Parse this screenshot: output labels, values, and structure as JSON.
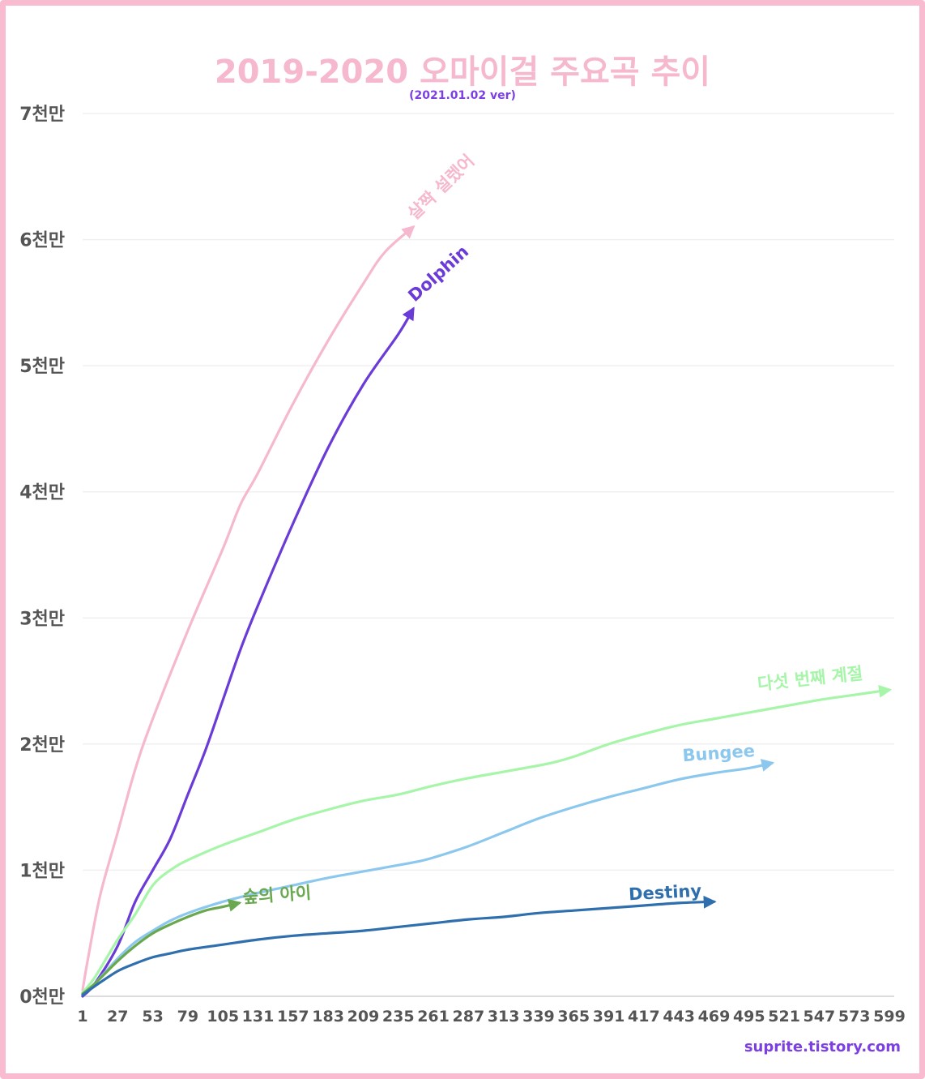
{
  "title": "2019-2020 오마이걸 주요곡 추이",
  "subtitle": "(2021.01.02 ver)",
  "credit": "suprite.tistory.com",
  "chart_data": {
    "type": "line",
    "title": "2019-2020 오마이걸 주요곡 추이",
    "subtitle": "(2021.01.02 ver)",
    "xlabel": "",
    "ylabel": "",
    "x_ticks": [
      "1",
      "27",
      "53",
      "79",
      "105",
      "131",
      "157",
      "183",
      "209",
      "235",
      "261",
      "287",
      "313",
      "339",
      "365",
      "391",
      "417",
      "443",
      "469",
      "495",
      "521",
      "547",
      "573",
      "599"
    ],
    "y_ticks": [
      "0천만",
      "1천만",
      "2천만",
      "3천만",
      "4천만",
      "5천만",
      "6천만",
      "7천만"
    ],
    "xlim": [
      1,
      599
    ],
    "ylim": [
      0,
      7
    ],
    "y_unit": "천만",
    "grid": true,
    "legend": "labels at line ends",
    "series": [
      {
        "name": "살짝 설렜어",
        "color": "#f6b8ce",
        "points": [
          [
            1,
            0.05
          ],
          [
            5,
            0.3
          ],
          [
            14,
            0.8
          ],
          [
            27,
            1.3
          ],
          [
            40,
            1.8
          ],
          [
            53,
            2.2
          ],
          [
            79,
            2.9
          ],
          [
            105,
            3.55
          ],
          [
            118,
            3.9
          ],
          [
            131,
            4.15
          ],
          [
            157,
            4.7
          ],
          [
            183,
            5.2
          ],
          [
            209,
            5.65
          ],
          [
            225,
            5.9
          ],
          [
            246,
            6.1
          ]
        ]
      },
      {
        "name": "Dolphin",
        "color": "#6a3bd6",
        "points": [
          [
            1,
            0
          ],
          [
            10,
            0.1
          ],
          [
            27,
            0.4
          ],
          [
            40,
            0.75
          ],
          [
            53,
            1.0
          ],
          [
            66,
            1.25
          ],
          [
            79,
            1.6
          ],
          [
            92,
            1.95
          ],
          [
            105,
            2.35
          ],
          [
            118,
            2.75
          ],
          [
            131,
            3.1
          ],
          [
            157,
            3.75
          ],
          [
            183,
            4.35
          ],
          [
            209,
            4.85
          ],
          [
            235,
            5.25
          ],
          [
            246,
            5.45
          ]
        ]
      },
      {
        "name": "다섯 번째 계절",
        "color": "#a6f5a9",
        "points": [
          [
            1,
            0.03
          ],
          [
            10,
            0.15
          ],
          [
            27,
            0.45
          ],
          [
            40,
            0.65
          ],
          [
            53,
            0.88
          ],
          [
            66,
            1.0
          ],
          [
            79,
            1.08
          ],
          [
            105,
            1.2
          ],
          [
            131,
            1.3
          ],
          [
            157,
            1.4
          ],
          [
            183,
            1.48
          ],
          [
            209,
            1.55
          ],
          [
            235,
            1.6
          ],
          [
            261,
            1.67
          ],
          [
            287,
            1.73
          ],
          [
            313,
            1.78
          ],
          [
            339,
            1.83
          ],
          [
            352,
            1.86
          ],
          [
            365,
            1.9
          ],
          [
            391,
            2.0
          ],
          [
            417,
            2.08
          ],
          [
            443,
            2.15
          ],
          [
            469,
            2.2
          ],
          [
            495,
            2.25
          ],
          [
            521,
            2.3
          ],
          [
            547,
            2.35
          ],
          [
            573,
            2.39
          ],
          [
            599,
            2.43
          ]
        ]
      },
      {
        "name": "Bungee",
        "color": "#8cc8ee",
        "points": [
          [
            1,
            0.02
          ],
          [
            10,
            0.1
          ],
          [
            27,
            0.3
          ],
          [
            40,
            0.43
          ],
          [
            53,
            0.52
          ],
          [
            66,
            0.6
          ],
          [
            79,
            0.66
          ],
          [
            105,
            0.75
          ],
          [
            131,
            0.82
          ],
          [
            157,
            0.88
          ],
          [
            183,
            0.94
          ],
          [
            209,
            0.99
          ],
          [
            235,
            1.04
          ],
          [
            250,
            1.07
          ],
          [
            261,
            1.1
          ],
          [
            287,
            1.19
          ],
          [
            313,
            1.3
          ],
          [
            339,
            1.41
          ],
          [
            365,
            1.5
          ],
          [
            391,
            1.58
          ],
          [
            417,
            1.65
          ],
          [
            443,
            1.72
          ],
          [
            469,
            1.77
          ],
          [
            495,
            1.81
          ],
          [
            512,
            1.85
          ]
        ]
      },
      {
        "name": "숲의 아이",
        "color": "#6aa84f",
        "points": [
          [
            1,
            0.02
          ],
          [
            10,
            0.1
          ],
          [
            27,
            0.28
          ],
          [
            40,
            0.4
          ],
          [
            53,
            0.5
          ],
          [
            66,
            0.57
          ],
          [
            79,
            0.63
          ],
          [
            92,
            0.68
          ],
          [
            105,
            0.71
          ],
          [
            117,
            0.74
          ]
        ]
      },
      {
        "name": "Destiny",
        "color": "#2f6fad",
        "points": [
          [
            1,
            0.01
          ],
          [
            10,
            0.08
          ],
          [
            27,
            0.2
          ],
          [
            40,
            0.26
          ],
          [
            53,
            0.31
          ],
          [
            66,
            0.34
          ],
          [
            79,
            0.37
          ],
          [
            105,
            0.41
          ],
          [
            131,
            0.45
          ],
          [
            157,
            0.48
          ],
          [
            183,
            0.5
          ],
          [
            209,
            0.52
          ],
          [
            235,
            0.55
          ],
          [
            261,
            0.58
          ],
          [
            287,
            0.61
          ],
          [
            313,
            0.63
          ],
          [
            339,
            0.66
          ],
          [
            365,
            0.68
          ],
          [
            391,
            0.7
          ],
          [
            417,
            0.72
          ],
          [
            443,
            0.74
          ],
          [
            469,
            0.75
          ]
        ]
      }
    ]
  }
}
